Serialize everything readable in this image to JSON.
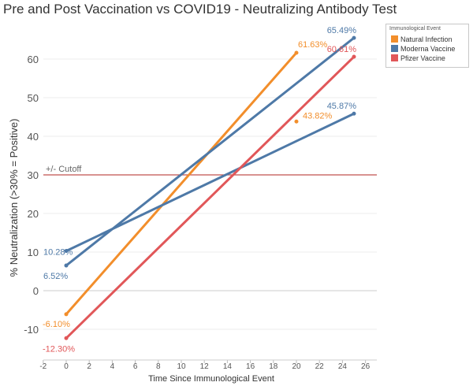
{
  "chart_data": {
    "type": "line",
    "title": "Pre and Post Vaccination vs COVID19 - Neutralizing Antibody Test",
    "xlabel": "Time Since Immunological Event",
    "ylabel": "% Neutralization (>30% = Positive)",
    "xlim": [
      -2,
      26.5
    ],
    "ylim": [
      -15,
      70
    ],
    "x_ticks": [
      -2,
      0,
      2,
      4,
      6,
      8,
      10,
      12,
      14,
      16,
      18,
      20,
      22,
      24,
      26
    ],
    "y_ticks": [
      -10,
      0,
      10,
      20,
      30,
      40,
      50,
      60
    ],
    "reference_line": {
      "y": 30,
      "label": "+/- Cutoff",
      "color": "#c0504d"
    },
    "legend": {
      "title": "Immunological Event",
      "position": "top-right"
    },
    "series": [
      {
        "name": "Natural Infection",
        "color": "#f28e2b",
        "points": [
          {
            "x": 0,
            "y": -6.1,
            "label": "-6.10%"
          },
          {
            "x": 20,
            "y": 61.63,
            "label": "61.63%"
          }
        ]
      },
      {
        "name": "Moderna Vaccine",
        "color": "#4e79a7",
        "points": [
          {
            "x": 0,
            "y": 6.52,
            "label": "6.52%"
          },
          {
            "x": 25,
            "y": 65.49,
            "label": "65.49%"
          }
        ]
      },
      {
        "name": "Moderna Vaccine",
        "color": "#4e79a7",
        "points": [
          {
            "x": 0,
            "y": 10.28,
            "label": "10.28%"
          },
          {
            "x": 25,
            "y": 45.87,
            "label": "45.87%"
          }
        ]
      },
      {
        "name": "Pfizer Vaccine",
        "color": "#e15759",
        "points": [
          {
            "x": 0,
            "y": -12.3,
            "label": "-12.30%"
          },
          {
            "x": 25,
            "y": 60.61,
            "label": "60.61%"
          }
        ]
      }
    ],
    "extra_points": [
      {
        "x": 20,
        "y": 43.82,
        "label": "43.82%",
        "color": "#f28e2b"
      }
    ]
  },
  "legend_items": [
    {
      "label": "Natural Infection",
      "color": "#f28e2b"
    },
    {
      "label": "Moderna Vaccine",
      "color": "#4e79a7"
    },
    {
      "label": "Pfizer Vaccine",
      "color": "#e15759"
    }
  ]
}
